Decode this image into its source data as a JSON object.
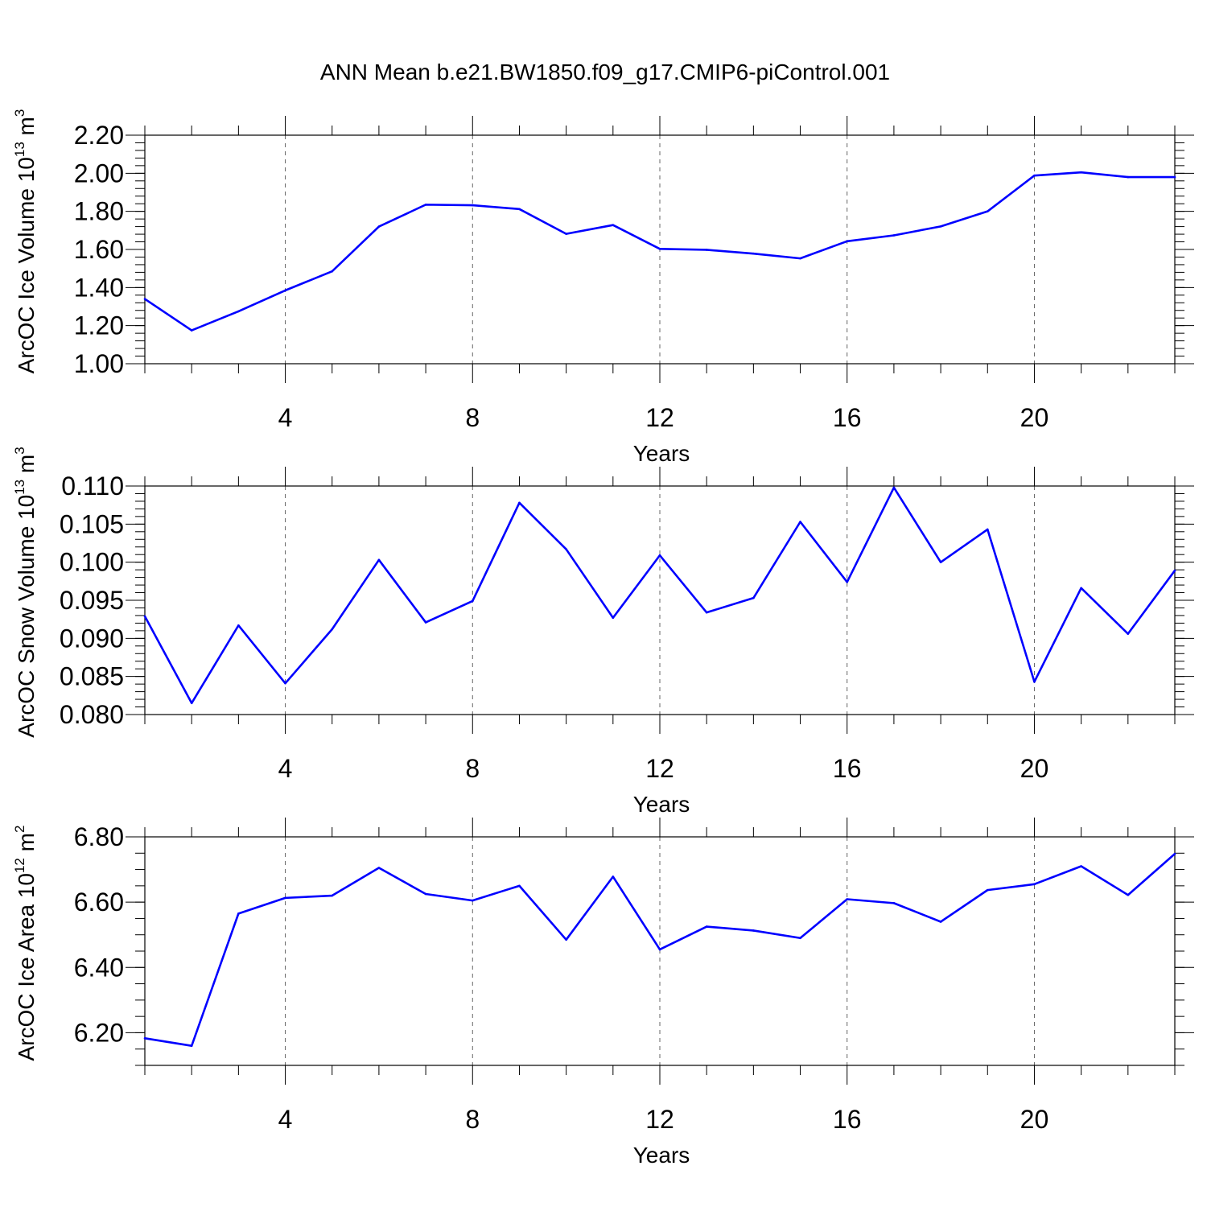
{
  "figure": {
    "title": "ANN Mean b.e21.BW1850.f09_g17.CMIP6-piControl.001",
    "line_color": "#0000ff"
  },
  "chart_data": [
    {
      "type": "line",
      "xlabel": "Years",
      "ylabel": {
        "text": "ArcOC Ice Volume 10",
        "exp": "13",
        "unit": " m",
        "unit_exp": "3"
      },
      "x": [
        1,
        2,
        3,
        4,
        5,
        6,
        7,
        8,
        9,
        10,
        11,
        12,
        13,
        14,
        15,
        16,
        17,
        18,
        19,
        20,
        21,
        22,
        23
      ],
      "values": [
        1.34,
        1.175,
        1.275,
        1.385,
        1.485,
        1.72,
        1.835,
        1.832,
        1.812,
        1.682,
        1.728,
        1.603,
        1.598,
        1.578,
        1.553,
        1.643,
        1.674,
        1.721,
        1.8,
        1.988,
        2.005,
        1.98,
        1.98
      ],
      "xlim": [
        1,
        23
      ],
      "ylim": [
        1.0,
        2.2
      ],
      "xticks": [
        4,
        8,
        12,
        16,
        20
      ],
      "xtick_labels": [
        "4",
        "8",
        "12",
        "16",
        "20"
      ],
      "yticks": [
        1.0,
        1.2,
        1.4,
        1.6,
        1.8,
        2.0,
        2.2
      ],
      "ytick_labels": [
        "1.00",
        "1.20",
        "1.40",
        "1.60",
        "1.80",
        "2.00",
        "2.20"
      ],
      "y_minor_step": 0.04,
      "grid": "vertical dashed at major x ticks"
    },
    {
      "type": "line",
      "xlabel": "Years",
      "ylabel": {
        "text": "ArcOC Snow Volume 10",
        "exp": "13",
        "unit": " m",
        "unit_exp": "3"
      },
      "x": [
        1,
        2,
        3,
        4,
        5,
        6,
        7,
        8,
        9,
        10,
        11,
        12,
        13,
        14,
        15,
        16,
        17,
        18,
        19,
        20,
        21,
        22,
        23
      ],
      "values": [
        0.0929,
        0.0815,
        0.0917,
        0.0841,
        0.0912,
        0.1003,
        0.0921,
        0.0949,
        0.1078,
        0.1017,
        0.0927,
        0.1009,
        0.0934,
        0.0953,
        0.1053,
        0.0974,
        0.1098,
        0.1,
        0.1043,
        0.0843,
        0.0966,
        0.0906,
        0.0989
      ],
      "xlim": [
        1,
        23
      ],
      "ylim": [
        0.08,
        0.11
      ],
      "xticks": [
        4,
        8,
        12,
        16,
        20
      ],
      "xtick_labels": [
        "4",
        "8",
        "12",
        "16",
        "20"
      ],
      "yticks": [
        0.08,
        0.085,
        0.09,
        0.095,
        0.1,
        0.105,
        0.11
      ],
      "ytick_labels": [
        "0.080",
        "0.085",
        "0.090",
        "0.095",
        "0.100",
        "0.105",
        "0.110"
      ],
      "y_minor_step": 0.001,
      "grid": "vertical dashed at major x ticks"
    },
    {
      "type": "line",
      "xlabel": "Years",
      "ylabel": {
        "text": "ArcOC Ice Area 10",
        "exp": "12",
        "unit": " m",
        "unit_exp": "2"
      },
      "x": [
        1,
        2,
        3,
        4,
        5,
        6,
        7,
        8,
        9,
        10,
        11,
        12,
        13,
        14,
        15,
        16,
        17,
        18,
        19,
        20,
        21,
        22,
        23
      ],
      "values": [
        6.183,
        6.16,
        6.565,
        6.613,
        6.62,
        6.705,
        6.625,
        6.605,
        6.65,
        6.485,
        6.678,
        6.455,
        6.525,
        6.513,
        6.49,
        6.609,
        6.597,
        6.54,
        6.637,
        6.655,
        6.71,
        6.622,
        6.748
      ],
      "xlim": [
        1,
        23
      ],
      "ylim": [
        6.1,
        6.8
      ],
      "xticks": [
        4,
        8,
        12,
        16,
        20
      ],
      "xtick_labels": [
        "4",
        "8",
        "12",
        "16",
        "20"
      ],
      "yticks": [
        6.2,
        6.4,
        6.6,
        6.8
      ],
      "ytick_labels": [
        "6.20",
        "6.40",
        "6.60",
        "6.80"
      ],
      "y_minor_step": 0.05,
      "grid": "vertical dashed at major x ticks"
    }
  ]
}
